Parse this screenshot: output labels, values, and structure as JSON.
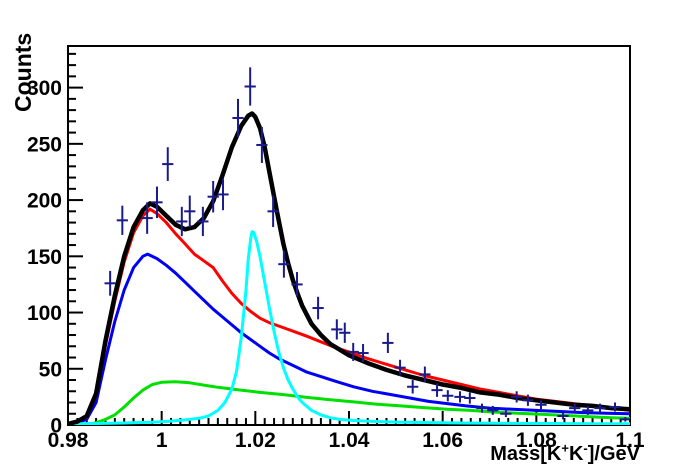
{
  "figure": {
    "background": "#ffffff",
    "x_title": {
      "p1": "Mass[K",
      "sup1": "+",
      "p2": "K",
      "sup2": "-",
      "p3": "]/GeV"
    },
    "y_title": "Counts"
  },
  "chart_data": {
    "type": "line",
    "title": "",
    "xlabel": "Mass[K+K-]/GeV",
    "ylabel": "Counts",
    "xlim": [
      0.98,
      1.1
    ],
    "ylim": [
      0,
      337
    ],
    "grid": false,
    "legend": "none",
    "x_major_ticks": [
      0.98,
      1.0,
      1.02,
      1.04,
      1.06,
      1.08,
      1.1
    ],
    "x_tick_labels": [
      "0.98",
      "1",
      "1.02",
      "1.04",
      "1.06",
      "1.08",
      "1.1"
    ],
    "x_minor_step": 0.002,
    "y_major_ticks": [
      0,
      50,
      100,
      150,
      200,
      250,
      300
    ],
    "y_tick_labels": [
      "0",
      "50",
      "100",
      "150",
      "200",
      "250",
      "300"
    ],
    "y_minor_step": 10,
    "frame_color": "#000000",
    "series": [
      {
        "name": "component-green",
        "color": "#00e000",
        "width": 3,
        "points": [
          [
            0.98,
            0.3
          ],
          [
            0.984,
            0.8
          ],
          [
            0.986,
            2
          ],
          [
            0.988,
            5
          ],
          [
            0.99,
            9
          ],
          [
            0.992,
            16
          ],
          [
            0.994,
            24
          ],
          [
            0.996,
            31
          ],
          [
            0.998,
            36
          ],
          [
            1.0,
            38
          ],
          [
            1.003,
            38.5
          ],
          [
            1.006,
            37.5
          ],
          [
            1.009,
            35.5
          ],
          [
            1.012,
            33.5
          ],
          [
            1.016,
            31.5
          ],
          [
            1.021,
            29
          ],
          [
            1.026,
            27
          ],
          [
            1.031,
            24.5
          ],
          [
            1.036,
            22.5
          ],
          [
            1.041,
            20.5
          ],
          [
            1.046,
            18.5
          ],
          [
            1.051,
            17
          ],
          [
            1.056,
            15.5
          ],
          [
            1.061,
            14
          ],
          [
            1.066,
            13
          ],
          [
            1.071,
            11.5
          ],
          [
            1.076,
            10.5
          ],
          [
            1.081,
            9.5
          ],
          [
            1.086,
            8.5
          ],
          [
            1.091,
            7.5
          ],
          [
            1.096,
            6.5
          ],
          [
            1.1,
            6
          ]
        ]
      },
      {
        "name": "component-blue",
        "color": "#0000f5",
        "width": 3,
        "points": [
          [
            0.98,
            1
          ],
          [
            0.982,
            2
          ],
          [
            0.984,
            5
          ],
          [
            0.986,
            20
          ],
          [
            0.988,
            58
          ],
          [
            0.99,
            92
          ],
          [
            0.992,
            120
          ],
          [
            0.994,
            140
          ],
          [
            0.996,
            150
          ],
          [
            0.997,
            152
          ],
          [
            0.999,
            148
          ],
          [
            1.001,
            142
          ],
          [
            1.003,
            135
          ],
          [
            1.005,
            127
          ],
          [
            1.007,
            119
          ],
          [
            1.009,
            111
          ],
          [
            1.011,
            103
          ],
          [
            1.013,
            96
          ],
          [
            1.015,
            89
          ],
          [
            1.017,
            82
          ],
          [
            1.019,
            76
          ],
          [
            1.021,
            70
          ],
          [
            1.023,
            64
          ],
          [
            1.025,
            59
          ],
          [
            1.027,
            55
          ],
          [
            1.029,
            51
          ],
          [
            1.031,
            47
          ],
          [
            1.034,
            43
          ],
          [
            1.037,
            39
          ],
          [
            1.041,
            34
          ],
          [
            1.045,
            30
          ],
          [
            1.049,
            27
          ],
          [
            1.053,
            24
          ],
          [
            1.057,
            21
          ],
          [
            1.061,
            19
          ],
          [
            1.065,
            17
          ],
          [
            1.07,
            15
          ],
          [
            1.075,
            14
          ],
          [
            1.08,
            13
          ],
          [
            1.085,
            12
          ],
          [
            1.09,
            11
          ],
          [
            1.095,
            10.5
          ],
          [
            1.1,
            10
          ]
        ]
      },
      {
        "name": "component-red",
        "color": "#ff0000",
        "width": 3,
        "points": [
          [
            0.98,
            1
          ],
          [
            0.982,
            3
          ],
          [
            0.984,
            7
          ],
          [
            0.986,
            26
          ],
          [
            0.988,
            71
          ],
          [
            0.99,
            110
          ],
          [
            0.992,
            145
          ],
          [
            0.994,
            171
          ],
          [
            0.996,
            186
          ],
          [
            0.9975,
            192
          ],
          [
            0.999,
            188
          ],
          [
            1.001,
            180
          ],
          [
            1.003,
            170
          ],
          [
            1.005,
            161
          ],
          [
            1.007,
            152
          ],
          [
            1.009,
            146
          ],
          [
            1.011,
            140
          ],
          [
            1.013,
            128
          ],
          [
            1.015,
            117
          ],
          [
            1.017,
            108
          ],
          [
            1.019,
            101
          ],
          [
            1.021,
            95
          ],
          [
            1.023,
            91
          ],
          [
            1.025,
            88
          ],
          [
            1.027,
            85
          ],
          [
            1.029,
            82
          ],
          [
            1.031,
            79
          ],
          [
            1.034,
            74
          ],
          [
            1.037,
            69
          ],
          [
            1.04,
            65
          ],
          [
            1.044,
            59
          ],
          [
            1.048,
            54
          ],
          [
            1.052,
            49
          ],
          [
            1.056,
            44
          ],
          [
            1.06,
            40
          ],
          [
            1.064,
            36
          ],
          [
            1.068,
            32
          ],
          [
            1.072,
            29
          ],
          [
            1.076,
            26
          ],
          [
            1.08,
            23
          ],
          [
            1.084,
            21
          ],
          [
            1.088,
            19
          ],
          [
            1.092,
            17
          ],
          [
            1.096,
            15
          ],
          [
            1.1,
            13
          ]
        ]
      },
      {
        "name": "peak-cyan",
        "color": "#00ffff",
        "width": 3,
        "points": [
          [
            0.98,
            1
          ],
          [
            0.986,
            1.3
          ],
          [
            0.992,
            1.8
          ],
          [
            0.998,
            2.5
          ],
          [
            1.002,
            3.5
          ],
          [
            1.005,
            4.5
          ],
          [
            1.008,
            6
          ],
          [
            1.01,
            8
          ],
          [
            1.012,
            13
          ],
          [
            1.0135,
            20
          ],
          [
            1.015,
            32
          ],
          [
            1.016,
            48
          ],
          [
            1.017,
            78
          ],
          [
            1.018,
            120
          ],
          [
            1.0185,
            148
          ],
          [
            1.019,
            165
          ],
          [
            1.0193,
            172
          ],
          [
            1.0197,
            171
          ],
          [
            1.0203,
            163
          ],
          [
            1.021,
            150
          ],
          [
            1.022,
            127
          ],
          [
            1.023,
            104
          ],
          [
            1.024,
            83
          ],
          [
            1.025,
            65
          ],
          [
            1.026,
            51
          ],
          [
            1.027,
            40
          ],
          [
            1.028,
            32
          ],
          [
            1.029,
            25
          ],
          [
            1.03,
            20
          ],
          [
            1.032,
            13
          ],
          [
            1.034,
            9
          ],
          [
            1.036,
            6.5
          ],
          [
            1.038,
            5
          ],
          [
            1.041,
            4
          ],
          [
            1.045,
            3.2
          ],
          [
            1.05,
            2.6
          ],
          [
            1.056,
            2.2
          ],
          [
            1.064,
            1.8
          ],
          [
            1.072,
            1.5
          ],
          [
            1.082,
            1.3
          ],
          [
            1.092,
            1.2
          ],
          [
            1.1,
            1.1
          ]
        ]
      },
      {
        "name": "fit-total-black",
        "color": "#000000",
        "width": 4.5,
        "points": [
          [
            0.98,
            1
          ],
          [
            0.982,
            3
          ],
          [
            0.984,
            8
          ],
          [
            0.986,
            28
          ],
          [
            0.988,
            75
          ],
          [
            0.99,
            115
          ],
          [
            0.992,
            150
          ],
          [
            0.994,
            176
          ],
          [
            0.996,
            191
          ],
          [
            0.9975,
            197
          ],
          [
            0.999,
            194
          ],
          [
            1.001,
            186
          ],
          [
            1.003,
            178
          ],
          [
            1.005,
            174
          ],
          [
            1.007,
            176
          ],
          [
            1.009,
            184
          ],
          [
            1.011,
            199
          ],
          [
            1.013,
            222
          ],
          [
            1.015,
            247
          ],
          [
            1.017,
            266
          ],
          [
            1.0185,
            275
          ],
          [
            1.0193,
            277
          ],
          [
            1.02,
            274
          ],
          [
            1.021,
            264
          ],
          [
            1.022,
            247
          ],
          [
            1.023,
            225
          ],
          [
            1.024,
            203
          ],
          [
            1.025,
            182
          ],
          [
            1.026,
            161
          ],
          [
            1.027,
            144
          ],
          [
            1.028,
            129
          ],
          [
            1.029,
            117
          ],
          [
            1.03,
            106
          ],
          [
            1.032,
            90
          ],
          [
            1.034,
            80
          ],
          [
            1.036,
            72
          ],
          [
            1.038,
            67
          ],
          [
            1.04,
            62
          ],
          [
            1.044,
            55
          ],
          [
            1.048,
            49
          ],
          [
            1.052,
            44
          ],
          [
            1.056,
            40
          ],
          [
            1.06,
            36
          ],
          [
            1.064,
            33
          ],
          [
            1.068,
            29
          ],
          [
            1.072,
            27
          ],
          [
            1.076,
            24
          ],
          [
            1.08,
            22
          ],
          [
            1.084,
            20
          ],
          [
            1.088,
            18
          ],
          [
            1.092,
            17
          ],
          [
            1.096,
            15
          ],
          [
            1.1,
            14
          ]
        ]
      }
    ],
    "data_points": {
      "name": "data-histogram",
      "color": "#1a1a8c",
      "marker": "cross-with-error-bars",
      "x_half_width": 0.0012,
      "points": [
        [
          0.989,
          126,
          11
        ],
        [
          0.9916,
          182,
          13
        ],
        [
          0.9969,
          184,
          14
        ],
        [
          0.999,
          198,
          14
        ],
        [
          1.0013,
          232,
          15
        ],
        [
          1.0043,
          181,
          13
        ],
        [
          1.006,
          190,
          14
        ],
        [
          1.0088,
          181,
          13
        ],
        [
          1.011,
          203,
          14
        ],
        [
          1.0131,
          205,
          14
        ],
        [
          1.0163,
          273,
          17
        ],
        [
          1.0189,
          301,
          17
        ],
        [
          1.0214,
          249,
          16
        ],
        [
          1.0238,
          190,
          14
        ],
        [
          1.0261,
          143,
          12
        ],
        [
          1.0289,
          125,
          11
        ],
        [
          1.0334,
          104,
          10
        ],
        [
          1.0374,
          85,
          9
        ],
        [
          1.0391,
          82,
          9
        ],
        [
          1.0409,
          65,
          8
        ],
        [
          1.043,
          64,
          8
        ],
        [
          1.0483,
          73,
          9
        ],
        [
          1.0509,
          51,
          7
        ],
        [
          1.0536,
          34,
          6
        ],
        [
          1.0562,
          45,
          7
        ],
        [
          1.0588,
          31,
          6
        ],
        [
          1.0611,
          26,
          5
        ],
        [
          1.0637,
          25,
          5
        ],
        [
          1.0658,
          24,
          5
        ],
        [
          1.0684,
          15,
          4
        ],
        [
          1.0707,
          13,
          4
        ],
        [
          1.0735,
          10,
          3
        ],
        [
          1.0758,
          25,
          5
        ],
        [
          1.0782,
          22,
          5
        ],
        [
          1.081,
          18,
          4
        ],
        [
          1.0857,
          8,
          3
        ],
        [
          1.0882,
          15,
          4
        ],
        [
          1.091,
          13,
          4
        ],
        [
          1.0936,
          15,
          4
        ],
        [
          1.0968,
          16,
          4
        ],
        [
          1.099,
          5,
          2
        ]
      ]
    }
  }
}
